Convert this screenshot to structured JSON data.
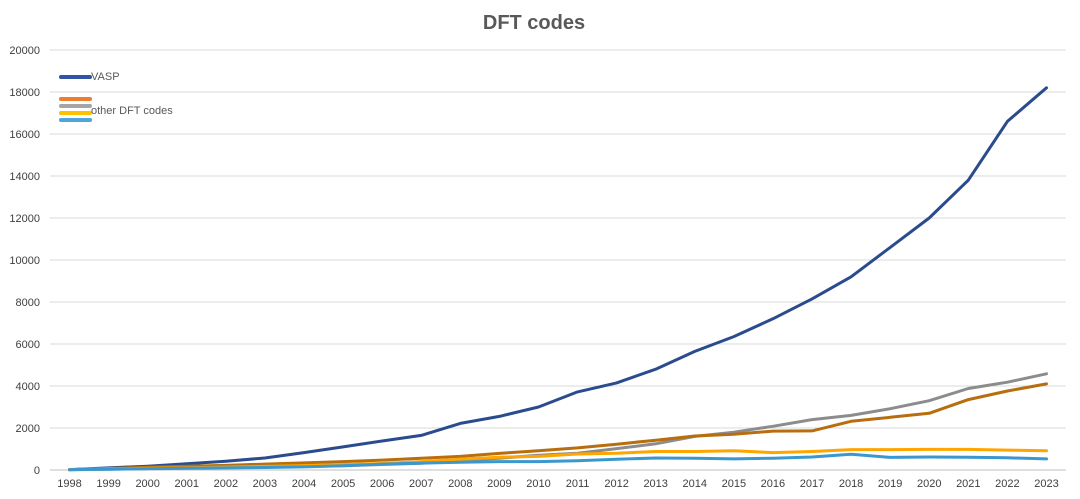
{
  "chart_data": {
    "type": "line",
    "title": "DFT codes",
    "xlabel": "",
    "ylabel": "",
    "ylim": [
      0,
      20000
    ],
    "yticks": [
      0,
      2000,
      4000,
      6000,
      8000,
      10000,
      12000,
      14000,
      16000,
      18000,
      20000
    ],
    "grid": true,
    "legend_position": "top-left",
    "categories": [
      "1998",
      "1999",
      "2000",
      "2001",
      "2002",
      "2003",
      "2004",
      "2005",
      "2006",
      "2007",
      "2008",
      "2009",
      "2010",
      "2011",
      "2012",
      "2013",
      "2014",
      "2015",
      "2016",
      "2017",
      "2018",
      "2019",
      "2020",
      "2021",
      "2022",
      "2023"
    ],
    "legend": [
      {
        "label": "VASP",
        "color": "#2f55a4"
      },
      {
        "label": "",
        "color": "#ed7d31"
      },
      {
        "label": "other DFT codes",
        "color": "#a5a5a5"
      },
      {
        "label": "",
        "color": "#ffc000"
      },
      {
        "label": "",
        "color": "#4ea5d9"
      }
    ],
    "series": [
      {
        "color": "#2a4b8d",
        "values": [
          20,
          100,
          180,
          300,
          420,
          570,
          830,
          1100,
          1380,
          1650,
          2220,
          2550,
          3000,
          3720,
          4150,
          4800,
          5650,
          6350,
          7200,
          8150,
          9200,
          10600,
          12000,
          13800,
          16600,
          18200
        ]
      },
      {
        "color": "#8c8c8c",
        "values": [
          10,
          40,
          70,
          100,
          130,
          160,
          180,
          200,
          260,
          320,
          450,
          560,
          700,
          800,
          1020,
          1250,
          1600,
          1800,
          2080,
          2400,
          2600,
          2920,
          3300,
          3880,
          4180,
          4580
        ]
      },
      {
        "color": "#b86e0e",
        "values": [
          20,
          70,
          130,
          180,
          220,
          280,
          340,
          400,
          470,
          560,
          650,
          790,
          920,
          1050,
          1230,
          1420,
          1620,
          1700,
          1850,
          1860,
          2320,
          2510,
          2700,
          3350,
          3760,
          4100
        ]
      },
      {
        "color": "#ffa500",
        "values": [
          20,
          50,
          80,
          110,
          140,
          170,
          210,
          260,
          310,
          400,
          520,
          610,
          650,
          760,
          800,
          880,
          880,
          920,
          830,
          880,
          970,
          970,
          980,
          980,
          950,
          920
        ]
      },
      {
        "color": "#3a98cf",
        "values": [
          20,
          40,
          60,
          80,
          100,
          120,
          150,
          200,
          280,
          330,
          370,
          400,
          400,
          440,
          510,
          570,
          560,
          530,
          560,
          620,
          750,
          600,
          620,
          610,
          580,
          530
        ]
      }
    ]
  }
}
